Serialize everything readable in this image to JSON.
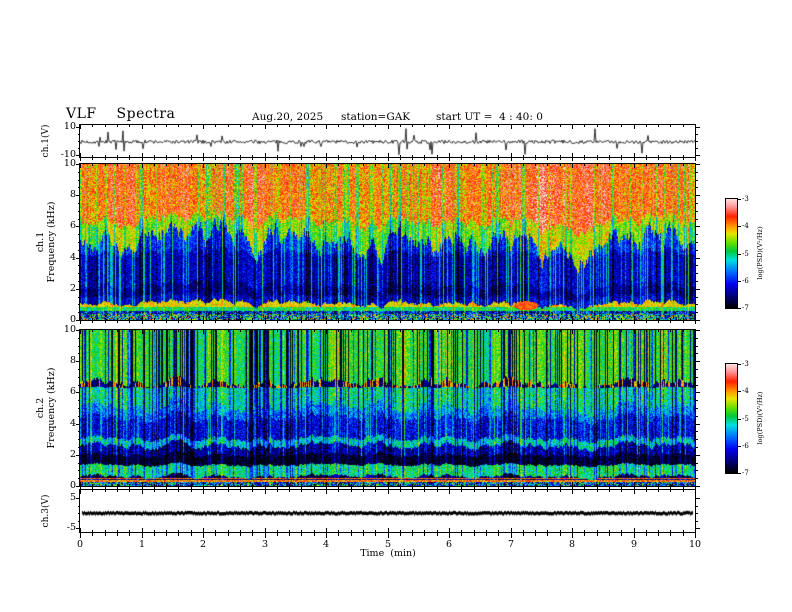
{
  "header": {
    "title": "VLF  Spectra",
    "date": "Aug.20, 2025",
    "station": "station=GAK",
    "start_ut": "start UT =  4 : 40: 0"
  },
  "axes": {
    "time": {
      "label": "Time  (min)",
      "ticks": [
        0,
        1,
        2,
        3,
        4,
        5,
        6,
        7,
        8,
        9,
        10
      ],
      "range": [
        0,
        10
      ],
      "minor_step": 0.2
    },
    "freq": {
      "ticks": [
        0,
        2,
        4,
        6,
        8,
        10
      ],
      "range": [
        0,
        10
      ],
      "minor_step": 0.5
    }
  },
  "panels": {
    "ch1_wave": {
      "label": "ch.1(V)",
      "yticks": [
        10,
        -10
      ],
      "yminors": [
        5,
        0,
        -5
      ],
      "ylim": [
        -10,
        10
      ]
    },
    "ch1_spec": {
      "ch_label": "ch.1",
      "axis_label": "Frequency (kHz)",
      "yticks": [
        0,
        2,
        4,
        6,
        8,
        10
      ]
    },
    "ch2_spec": {
      "ch_label": "ch.2",
      "axis_label": "Frequency (kHz)",
      "yticks": [
        0,
        2,
        4,
        6,
        8,
        10
      ]
    },
    "ch3_wave": {
      "label": "ch.3(V)",
      "yticks": [
        5,
        -5
      ],
      "yminors": [
        2.5,
        0,
        -2.5
      ],
      "ylim": [
        -5,
        5
      ]
    }
  },
  "colorbar": {
    "label": "log(PSD)(V²/Hz)",
    "ticks": [
      -3,
      -4,
      -5,
      -6,
      -7
    ],
    "range": [
      -7,
      -3
    ],
    "stops": [
      [
        0,
        "#000000"
      ],
      [
        0.1,
        "#00006e"
      ],
      [
        0.22,
        "#0000ee"
      ],
      [
        0.32,
        "#0064ff"
      ],
      [
        0.44,
        "#00e0e0"
      ],
      [
        0.52,
        "#00c83c"
      ],
      [
        0.6,
        "#66e000"
      ],
      [
        0.68,
        "#e6e600"
      ],
      [
        0.75,
        "#ff9800"
      ],
      [
        0.84,
        "#ff2000"
      ],
      [
        0.93,
        "#ff9898"
      ],
      [
        1,
        "#ffe0e0"
      ]
    ]
  },
  "chart_data": [
    {
      "id": "ch1_waveform",
      "type": "line",
      "title": "ch.1(V)",
      "x_range_min": [
        0,
        10
      ],
      "ylim": [
        -10,
        10
      ],
      "yticks": [
        10,
        -10
      ],
      "description": "broadband noise around 0 V with frequent impulsive spikes, mostly downward",
      "baseline": -0.6,
      "noise_amp": 1.3,
      "spike_prob": 0.05,
      "spike_amp": [
        3,
        9.5
      ],
      "spike_down_fraction": 0.72,
      "seed": 7
    },
    {
      "id": "ch1_spectrogram",
      "type": "heatmap",
      "title": "ch.1 Frequency (kHz)",
      "x_range_min": [
        0,
        10
      ],
      "y_range_khz": [
        0,
        10
      ],
      "color_range_log_psd": [
        -7,
        -3
      ],
      "seed": 42,
      "streak_bright_prob": 0.24,
      "streak_dark_prob": 0.3,
      "bands": [
        {
          "f_lo": 6.35,
          "f_hi": 10,
          "base": -3.8,
          "noise": 0.5,
          "col": 0.3,
          "bright": 0.1,
          "dark": 0.55,
          "jitter": 0.45,
          "desc": "intense red/orange hiss"
        },
        {
          "f_lo": 5.15,
          "f_hi": 6.35,
          "base": -4.55,
          "noise": 0.4,
          "col": 0.25,
          "bright": 0.25,
          "dark": 0.5,
          "jitter": 0.9,
          "desc": "yellow-green transition, flame-like lower edge"
        },
        {
          "f_lo": 4.3,
          "f_hi": 5.15,
          "base": -6.0,
          "noise": 0.4,
          "col": 0.15,
          "bright": 1.0,
          "dark": 0.35,
          "jitter": 0.3,
          "desc": "blue with cyan sferic streaks"
        },
        {
          "f_lo": 2.2,
          "f_hi": 4.3,
          "base": -6.35,
          "noise": 0.4,
          "col": 0.15,
          "bright": 1.0,
          "dark": 0.35,
          "jitter": 0.3
        },
        {
          "f_lo": 1.55,
          "f_hi": 2.2,
          "base": -6.6,
          "noise": 0.35,
          "col": 0.1,
          "bright": 0.9,
          "dark": 0.3,
          "jitter": 0.2
        },
        {
          "f_lo": 1.08,
          "f_hi": 1.55,
          "base": -6.3,
          "noise": 0.4,
          "col": 0.1,
          "bright": 0.9,
          "dark": 0.3,
          "jitter": 0.2
        },
        {
          "f_lo": 0.84,
          "f_hi": 1.08,
          "base": -4.2,
          "noise": 0.3,
          "col": 0.05,
          "bright": 0.15,
          "dark": 0.15,
          "jitter": 0,
          "desc": "bright yellow-orange hum band"
        },
        {
          "f_lo": 0.6,
          "f_hi": 0.84,
          "base": -4.9,
          "noise": 0.35,
          "col": 0.05,
          "bright": 0.25,
          "dark": 0.2,
          "jitter": 0,
          "desc": "green hum band"
        },
        {
          "f_lo": 0.38,
          "f_hi": 0.6,
          "base": -6.1,
          "noise": 0.9,
          "col": 0,
          "bright": 0.7,
          "dark": 0.4,
          "jitter": 0
        },
        {
          "f_lo": 0,
          "f_hi": 0.38,
          "base": -5.3,
          "noise": 1.4,
          "col": 0,
          "bright": 0.4,
          "dark": 0.6,
          "jitter": 0,
          "desc": "mixed colorful speckle"
        }
      ],
      "blobs": [
        {
          "t": 7.25,
          "f": 0.95,
          "dt": 0.2,
          "df": 0.28,
          "psd": -3.75,
          "desc": "red enhancement in hum band"
        }
      ]
    },
    {
      "id": "ch2_spectrogram",
      "type": "heatmap",
      "title": "ch.2 Frequency (kHz)",
      "x_range_min": [
        0,
        10
      ],
      "y_range_khz": [
        0,
        10
      ],
      "color_range_log_psd": [
        -7,
        -3
      ],
      "seed": 137,
      "streak_bright_prob": 0.2,
      "streak_dark_prob": 0.34,
      "bands": [
        {
          "f_lo": 6.6,
          "f_hi": 10,
          "base": -4.75,
          "noise": 0.35,
          "col": 0.2,
          "bright": 0.3,
          "dark": 1.6,
          "jitter": 0.3,
          "desc": "green hiss with dense dark-blue vertical stripes"
        },
        {
          "f_lo": 6.32,
          "f_hi": 6.6,
          "base": -6.6,
          "noise": 0.35,
          "col": 0,
          "bright": 0.2,
          "dark": 0.2,
          "jitter": 0.05,
          "dash_prob": 0.3,
          "dash_psd": -4.0,
          "desc": "dark line with orange dashes"
        },
        {
          "f_lo": 5.05,
          "f_hi": 6.32,
          "base": -5.05,
          "noise": 0.45,
          "col": 0.2,
          "bright": 0.3,
          "dark": 0.9,
          "jitter": 0.4
        },
        {
          "f_lo": 4.4,
          "f_hi": 5.05,
          "base": -5.6,
          "noise": 0.45,
          "col": 0.15,
          "bright": 0.5,
          "dark": 0.55,
          "jitter": 0.3
        },
        {
          "f_lo": 3.05,
          "f_hi": 4.4,
          "base": -6.15,
          "noise": 0.45,
          "col": 0.12,
          "bright": 0.8,
          "dark": 0.4,
          "jitter": 0.2,
          "desc": "blue with cyan speckle"
        },
        {
          "f_lo": 2.6,
          "f_hi": 3.05,
          "base": -5.2,
          "noise": 0.4,
          "col": 0.1,
          "bright": 0.4,
          "dark": 0.5,
          "jitter": 0.25,
          "desc": "greenish band"
        },
        {
          "f_lo": 2.0,
          "f_hi": 2.6,
          "base": -6.4,
          "noise": 0.45,
          "col": 0.08,
          "bright": 0.6,
          "dark": 0.4,
          "jitter": 0.15
        },
        {
          "f_lo": 1.35,
          "f_hi": 2.0,
          "base": -6.85,
          "noise": 0.3,
          "col": 0,
          "bright": 0.45,
          "dark": 0.15,
          "jitter": 0.1,
          "desc": "near-black band"
        },
        {
          "f_lo": 0.62,
          "f_hi": 1.35,
          "base": -4.95,
          "noise": 0.4,
          "col": 0.08,
          "bright": 0.3,
          "dark": 0.55,
          "jitter": 0.15,
          "desc": "green band"
        },
        {
          "f_lo": 0.52,
          "f_hi": 0.62,
          "base": -6.7,
          "noise": 0.4,
          "col": 0,
          "bright": 0.5,
          "dark": 0.2,
          "jitter": 0
        },
        {
          "f_lo": 0.44,
          "f_hi": 0.52,
          "base": -3.8,
          "noise": 0.35,
          "col": 0,
          "bright": 0.1,
          "dark": 0.1,
          "jitter": 0,
          "desc": "thin magenta-red line"
        },
        {
          "f_lo": 0.36,
          "f_hi": 0.44,
          "base": -6.5,
          "noise": 0.6,
          "col": 0,
          "bright": 0.5,
          "dark": 0.2,
          "jitter": 0
        },
        {
          "f_lo": 0.28,
          "f_hi": 0.36,
          "base": -3.9,
          "noise": 0.35,
          "col": 0,
          "bright": 0.1,
          "dark": 0.1,
          "jitter": 0,
          "desc": "thin magenta-red line"
        },
        {
          "f_lo": 0,
          "f_hi": 0.28,
          "base": -5.6,
          "noise": 1.2,
          "col": 0,
          "bright": 0.4,
          "dark": 0.5,
          "jitter": 0,
          "desc": "mixed speckle"
        }
      ],
      "blobs": []
    },
    {
      "id": "ch3_waveform",
      "type": "line",
      "title": "ch.3(V)",
      "x_range_min": [
        0,
        10
      ],
      "ylim": [
        -5,
        5
      ],
      "yticks": [
        5,
        -5
      ],
      "description": "flat signal at 0 V drawn as a thick black trace",
      "value": 0,
      "line_thickness_px": 3,
      "seed": 9
    }
  ]
}
